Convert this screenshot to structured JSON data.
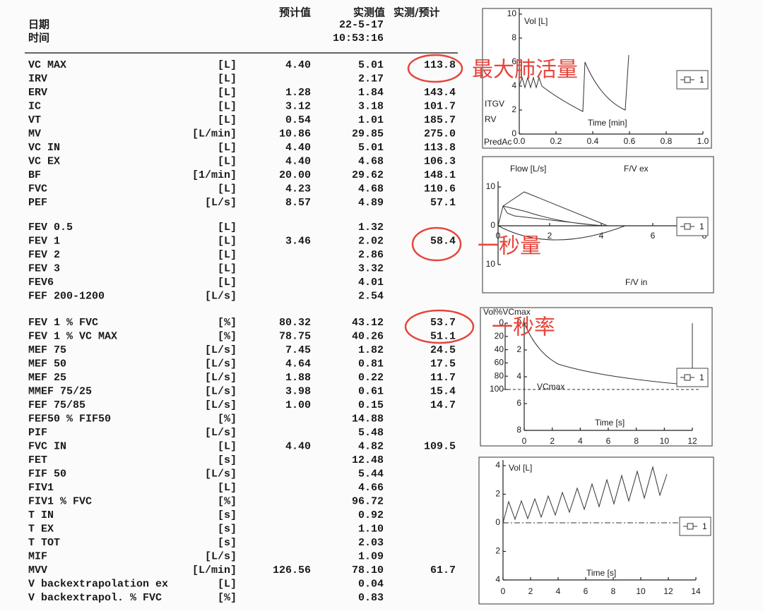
{
  "header": {
    "date_label": "日期",
    "time_label": "时间",
    "col_pred": "预计值",
    "col_actual": "实测值",
    "col_ratio": "实测/预计",
    "date": "22-5-17",
    "time": "10:53:16"
  },
  "table": {
    "sections": [
      {
        "rows": [
          [
            "VC MAX",
            "[L]",
            "4.40",
            "5.01",
            "113.8"
          ],
          [
            "IRV",
            "[L]",
            null,
            "2.17",
            null
          ],
          [
            "ERV",
            "[L]",
            "1.28",
            "1.84",
            "143.4"
          ],
          [
            "IC",
            "[L]",
            "3.12",
            "3.18",
            "101.7"
          ],
          [
            "VT",
            "[L]",
            "0.54",
            "1.01",
            "185.7"
          ],
          [
            "MV",
            "[L/min]",
            "10.86",
            "29.85",
            "275.0"
          ],
          [
            "VC IN",
            "[L]",
            "4.40",
            "5.01",
            "113.8"
          ],
          [
            "VC EX",
            "[L]",
            "4.40",
            "4.68",
            "106.3"
          ],
          [
            "BF",
            "[1/min]",
            "20.00",
            "29.62",
            "148.1"
          ],
          [
            "FVC",
            "[L]",
            "4.23",
            "4.68",
            "110.6"
          ],
          [
            "PEF",
            "[L/s]",
            "8.57",
            "4.89",
            "57.1"
          ]
        ]
      },
      {
        "rows": [
          [
            "FEV 0.5",
            "[L]",
            null,
            "1.32",
            null
          ],
          [
            "FEV 1",
            "[L]",
            "3.46",
            "2.02",
            "58.4"
          ],
          [
            "FEV 2",
            "[L]",
            null,
            "2.86",
            null
          ],
          [
            "FEV 3",
            "[L]",
            null,
            "3.32",
            null
          ],
          [
            "FEV6",
            "[L]",
            null,
            "4.01",
            null
          ],
          [
            "FEF 200-1200",
            "[L/s]",
            null,
            "2.54",
            null
          ]
        ]
      },
      {
        "rows": [
          [
            "FEV 1 % FVC",
            "[%]",
            "80.32",
            "43.12",
            "53.7"
          ],
          [
            "FEV 1 % VC MAX",
            "[%]",
            "78.75",
            "40.26",
            "51.1"
          ],
          [
            "MEF 75",
            "[L/s]",
            "7.45",
            "1.82",
            "24.5"
          ],
          [
            "MEF 50",
            "[L/s]",
            "4.64",
            "0.81",
            "17.5"
          ],
          [
            "MEF 25",
            "[L/s]",
            "1.88",
            "0.22",
            "11.7"
          ],
          [
            "MMEF 75/25",
            "[L/s]",
            "3.98",
            "0.61",
            "15.4"
          ],
          [
            "FEF 75/85",
            "[L/s]",
            "1.00",
            "0.15",
            "14.7"
          ],
          [
            "FEF50 % FIF50",
            "[%]",
            null,
            "14.88",
            null
          ],
          [
            "PIF",
            "[L/s]",
            null,
            "5.48",
            null
          ],
          [
            "FVC IN",
            "[L]",
            "4.40",
            "4.82",
            "109.5"
          ],
          [
            "FET",
            "[s]",
            null,
            "12.48",
            null
          ],
          [
            "FIF 50",
            "[L/s]",
            null,
            "5.44",
            null
          ],
          [
            "FIV1",
            "[L]",
            null,
            "4.66",
            null
          ],
          [
            "FIV1 % FVC",
            "[%]",
            null,
            "96.72",
            null
          ],
          [
            "T IN",
            "[s]",
            null,
            "0.92",
            null
          ],
          [
            "T EX",
            "[s]",
            null,
            "1.10",
            null
          ],
          [
            "T TOT",
            "[s]",
            null,
            "2.03",
            null
          ],
          [
            "MIF",
            "[L/s]",
            null,
            "1.09",
            null
          ],
          [
            "MVV",
            "[L/min]",
            "126.56",
            "78.10",
            "61.7"
          ],
          [
            "V backextrapolation ex",
            "[L]",
            null,
            "0.04",
            null
          ],
          [
            "V backextrapol. % FVC",
            "[%]",
            null,
            "0.83",
            null
          ]
        ]
      }
    ]
  },
  "annotations": [
    "最大肺活量",
    "一秒量",
    "一秒率"
  ],
  "charts": [
    {
      "labels": [
        "Vol [L]",
        "Time [min]",
        "ITGV",
        "RV",
        "PredAc"
      ],
      "legend": "1",
      "xlim": [
        0,
        1
      ],
      "xticks": [
        {
          "value": 0,
          "label": "0.0"
        },
        0.2,
        0.4,
        0.6,
        0.8,
        {
          "value": 1,
          "label": "1.0"
        }
      ],
      "ylim": [
        0,
        10
      ],
      "yticks": [
        0,
        2,
        4,
        6,
        8,
        10
      ]
    },
    {
      "labels": [
        "Flow [L/s]",
        "F/V ex",
        "F/V in"
      ],
      "legend": "1",
      "xlim": [
        0,
        8
      ],
      "xticks": [
        0,
        2,
        4,
        6,
        8
      ],
      "ylim": [
        -10,
        10
      ],
      "yticks": [
        {
          "value": -10,
          "label": "10"
        },
        0,
        10
      ]
    },
    {
      "labels": [
        "Vol%VCmax",
        "VCmax",
        "Time [s]"
      ],
      "legend": "1",
      "xlim": [
        0,
        12
      ],
      "xticks": [
        0,
        2,
        4,
        6,
        8,
        10,
        12
      ],
      "ylim": [
        8,
        0
      ],
      "yticks": [
        0,
        2,
        4,
        6,
        8
      ],
      "y2lim": [
        100,
        0
      ],
      "y2ticks": [
        0,
        20,
        40,
        60,
        80,
        100
      ]
    },
    {
      "labels": [
        "Vol [L]",
        "Time [s]"
      ],
      "legend": "1",
      "xlim": [
        0,
        14
      ],
      "xticks": [
        0,
        2,
        4,
        6,
        8,
        10,
        12,
        14
      ],
      "ylim": [
        -4,
        4
      ],
      "yticks": [
        {
          "value": -4,
          "label": "4"
        },
        {
          "value": -2,
          "label": "2"
        },
        0,
        2,
        4
      ]
    }
  ]
}
